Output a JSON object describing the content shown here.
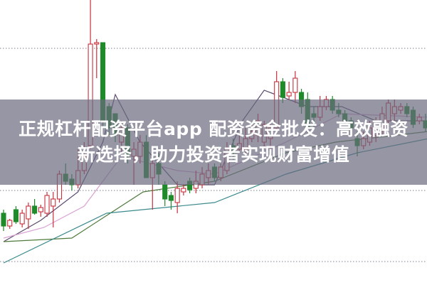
{
  "headline": {
    "line1": "正规杠杆配资平台app 配资资金批发：高效融资",
    "line2": "新选择，助力投资者实现财富增值"
  },
  "chart_data": {
    "type": "candlestick",
    "title": "",
    "xlabel": "",
    "ylabel": "",
    "grid": "dotted horizontal lines",
    "colors": {
      "up": "#c8303c",
      "down": "#1f8a2a",
      "grid": "#9a9aa8"
    },
    "candles": [
      [
        10.0,
        10.5,
        7.5,
        8.2
      ],
      [
        8.2,
        9.2,
        7.8,
        9.0
      ],
      [
        10.5,
        11.0,
        8.5,
        8.8
      ],
      [
        8.5,
        10.5,
        8.0,
        10.0
      ],
      [
        9.2,
        11.5,
        7.8,
        11.0
      ],
      [
        11.0,
        12.0,
        9.8,
        10.0
      ],
      [
        10.2,
        11.2,
        9.5,
        10.8
      ],
      [
        10.0,
        13.0,
        9.5,
        12.5
      ],
      [
        11.0,
        13.0,
        8.0,
        12.0
      ],
      [
        12.0,
        16.0,
        11.5,
        15.5
      ],
      [
        15.5,
        17.0,
        14.0,
        14.5
      ],
      [
        14.8,
        15.5,
        13.2,
        14.0
      ],
      [
        14.0,
        19.0,
        13.5,
        16.0
      ],
      [
        16.0,
        20.0,
        15.5,
        18.0
      ],
      [
        19.5,
        40.0,
        19.0,
        33.8
      ],
      [
        33.8,
        34.5,
        29.0,
        34.0
      ],
      [
        34.0,
        34.0,
        22.0,
        23.0
      ],
      [
        25.0,
        25.5,
        21.0,
        22.0
      ],
      [
        24.0,
        24.0,
        20.0,
        21.0
      ],
      [
        20.0,
        23.0,
        18.0,
        22.0
      ],
      [
        22.0,
        22.5,
        17.0,
        18.0
      ],
      [
        18.0,
        20.0,
        14.0,
        19.0
      ],
      [
        18.0,
        21.0,
        17.0,
        20.0
      ],
      [
        20.0,
        21.0,
        15.0,
        15.0
      ],
      [
        15.0,
        18.0,
        10.5,
        17.0
      ],
      [
        17.0,
        18.5,
        14.0,
        15.5
      ],
      [
        14.0,
        14.5,
        11.0,
        12.0
      ],
      [
        12.5,
        13.0,
        10.5,
        11.8
      ],
      [
        11.5,
        14.5,
        10.0,
        13.5
      ],
      [
        13.0,
        14.0,
        12.5,
        13.5
      ],
      [
        14.5,
        15.0,
        12.8,
        13.3
      ],
      [
        13.5,
        16.0,
        12.8,
        14.5
      ],
      [
        14.0,
        16.5,
        13.5,
        15.5
      ],
      [
        15.0,
        17.0,
        14.0,
        16.0
      ],
      [
        16.5,
        17.0,
        14.5,
        15.0
      ],
      [
        15.0,
        17.0,
        14.5,
        16.5
      ],
      [
        16.0,
        20.0,
        15.5,
        19.0
      ],
      [
        19.5,
        20.5,
        17.5,
        18.5
      ],
      [
        19.0,
        21.0,
        18.5,
        19.8
      ],
      [
        19.0,
        22.0,
        18.5,
        20.5
      ],
      [
        20.5,
        22.5,
        20.0,
        21.5
      ],
      [
        21.0,
        24.0,
        20.0,
        23.0
      ],
      [
        20.0,
        23.0,
        19.0,
        22.5
      ],
      [
        20.5,
        23.0,
        19.0,
        22.0
      ],
      [
        22.0,
        30.0,
        21.5,
        28.5
      ],
      [
        28.5,
        29.0,
        25.5,
        26.3
      ],
      [
        26.5,
        28.5,
        26.0,
        27.0
      ],
      [
        27.0,
        30.0,
        25.5,
        29.0
      ],
      [
        27.0,
        27.5,
        24.0,
        25.0
      ],
      [
        26.0,
        27.0,
        21.0,
        22.0
      ],
      [
        24.0,
        25.0,
        22.0,
        23.5
      ],
      [
        23.5,
        26.5,
        23.0,
        25.0
      ],
      [
        25.0,
        26.5,
        24.5,
        26.0
      ],
      [
        26.0,
        26.5,
        24.0,
        24.5
      ],
      [
        24.5,
        25.5,
        23.5,
        24.0
      ],
      [
        24.0,
        24.5,
        22.5,
        23.0
      ],
      [
        23.0,
        23.5,
        21.0,
        22.0
      ],
      [
        20.5,
        21.5,
        18.0,
        19.5
      ],
      [
        19.5,
        21.5,
        19.0,
        20.5
      ],
      [
        20.0,
        23.0,
        19.5,
        22.0
      ],
      [
        21.0,
        23.5,
        20.0,
        23.0
      ],
      [
        22.0,
        25.0,
        21.0,
        24.0
      ],
      [
        23.0,
        26.0,
        22.0,
        25.5
      ],
      [
        24.0,
        26.0,
        23.0,
        25.0
      ],
      [
        24.5,
        25.5,
        24.0,
        25.0
      ],
      [
        25.0,
        25.5,
        23.5,
        24.0
      ],
      [
        24.5,
        25.0,
        22.0,
        22.5
      ],
      [
        23.0,
        24.0,
        22.5,
        23.5
      ],
      [
        23.0,
        24.0,
        21.5,
        22.0
      ]
    ],
    "candle_format": [
      "open",
      "high",
      "low",
      "close"
    ],
    "moving_averages": [
      {
        "color": "#5a4a6e",
        "points": [
          [
            0,
            6
          ],
          [
            6,
            9
          ],
          [
            12,
            13
          ],
          [
            16,
            20
          ],
          [
            18,
            26.7
          ],
          [
            22,
            20
          ],
          [
            28,
            14
          ],
          [
            34,
            14
          ],
          [
            38.5,
            23
          ],
          [
            42,
            27.3
          ],
          [
            49,
            25
          ],
          [
            54.5,
            25
          ],
          [
            60,
            23
          ],
          [
            68.5,
            23
          ]
        ]
      },
      {
        "color": "#d8a2d2",
        "points": [
          [
            0,
            6.5
          ],
          [
            6.5,
            8
          ],
          [
            13,
            11
          ],
          [
            19,
            18
          ],
          [
            28,
            16
          ],
          [
            34,
            15.5
          ],
          [
            45.5,
            20
          ],
          [
            54.5,
            24
          ],
          [
            68.5,
            23.5
          ]
        ]
      },
      {
        "color": "#4f7a3c",
        "points": [
          [
            0,
            6
          ],
          [
            11,
            6.5
          ],
          [
            22.5,
            13
          ],
          [
            34,
            14.5
          ],
          [
            45.5,
            18.5
          ],
          [
            53.5,
            20
          ],
          [
            68.5,
            21.5
          ]
        ]
      },
      {
        "color": "#3a8a8e",
        "points": [
          [
            0,
            3
          ],
          [
            16.6,
            10
          ],
          [
            34,
            11.5
          ],
          [
            45.5,
            15.5
          ],
          [
            57,
            18.5
          ],
          [
            68.5,
            20.5
          ]
        ]
      }
    ],
    "gridlines": [
      33.2,
      13.2,
      3.2
    ]
  }
}
